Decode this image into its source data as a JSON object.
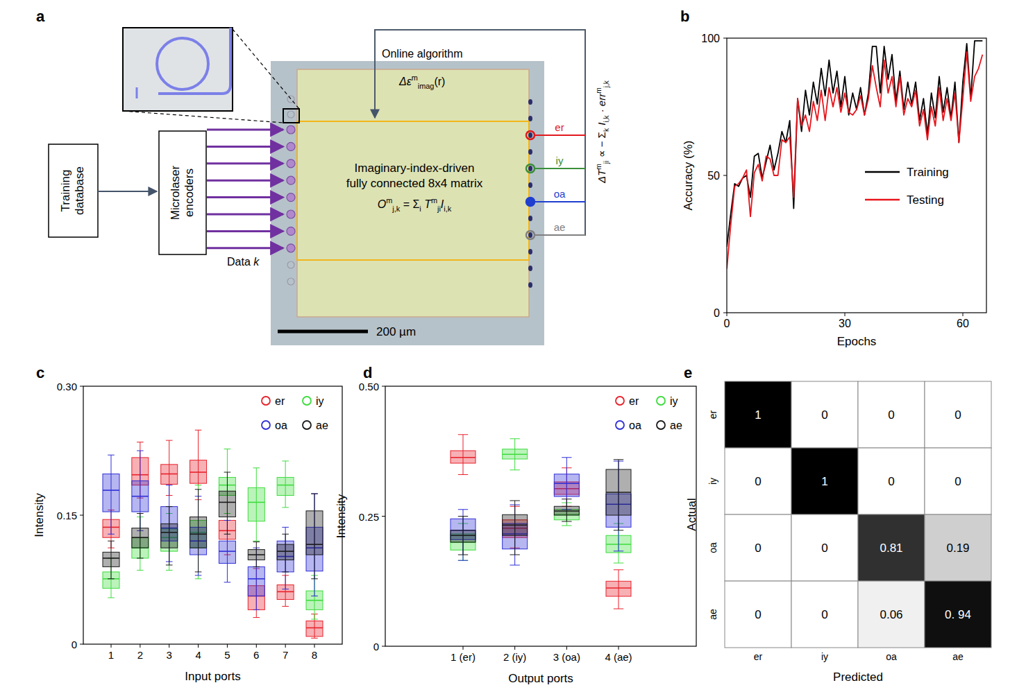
{
  "diagram": {
    "panel_label": "a",
    "training_database": [
      "Training",
      "database"
    ],
    "encoders": [
      "Microlaser",
      "encoders"
    ],
    "data_label": [
      {
        "t": "Data "
      },
      {
        "t": "k",
        "it": true
      }
    ],
    "online_algorithm": "Online algorithm",
    "permittivity": [
      {
        "t": "Δε",
        "it": true
      },
      {
        "t": "m",
        "sup": true
      },
      {
        "t": "imag",
        "sub": true
      },
      {
        "t": "(r)"
      }
    ],
    "matrix_title": [
      "Imaginary-index-driven",
      "fully connected 8x4 matrix"
    ],
    "matrix_formula": [
      {
        "t": "O",
        "it": true
      },
      {
        "t": "m",
        "sup": true
      },
      {
        "t": "j,k",
        "sub": true
      },
      {
        "t": " = Σ"
      },
      {
        "t": "i",
        "sub": true
      },
      {
        "t": " T",
        "it": true
      },
      {
        "t": "m",
        "sup": true
      },
      {
        "t": "ji",
        "sub": true
      },
      {
        "t": "I",
        "it": true
      },
      {
        "t": "i,k",
        "sub": true
      }
    ],
    "update_rule": [
      {
        "t": "ΔT",
        "it": true
      },
      {
        "t": "m",
        "sup": true
      },
      {
        "t": "ji",
        "sub": true
      },
      {
        "t": " ∝ − Σ"
      },
      {
        "t": "k",
        "sub": true
      },
      {
        "t": " I",
        "it": true
      },
      {
        "t": "i,k",
        "sub": true
      },
      {
        "t": " · err",
        "it": true
      },
      {
        "t": "m",
        "sup": true
      },
      {
        "t": "j,k",
        "sub": true
      }
    ],
    "outputs": [
      {
        "label": "er",
        "color": "#e0191e"
      },
      {
        "label": "iy",
        "color": "#3a8f3a"
      },
      {
        "label": "oa",
        "color": "#1f3fcf"
      },
      {
        "label": "ae",
        "color": "#7f7f7f"
      }
    ],
    "scale_bar": "200 µm"
  },
  "chart_data": [
    {
      "type": "line",
      "panel_label": "b",
      "x_label": "Epochs",
      "y_label": "Accuracy (%)",
      "x": [
        0,
        1,
        2,
        3,
        4,
        5,
        6,
        7,
        8,
        9,
        10,
        11,
        12,
        13,
        14,
        15,
        16,
        17,
        18,
        19,
        20,
        21,
        22,
        23,
        24,
        25,
        26,
        27,
        28,
        29,
        30,
        31,
        32,
        33,
        34,
        35,
        36,
        37,
        38,
        39,
        40,
        41,
        42,
        43,
        44,
        45,
        46,
        47,
        48,
        49,
        50,
        51,
        52,
        53,
        54,
        55,
        56,
        57,
        58,
        59,
        60,
        61,
        62,
        63,
        64,
        65
      ],
      "xlim": [
        0,
        66
      ],
      "xticks": [
        0,
        30,
        60
      ],
      "ylim": [
        0,
        100
      ],
      "yticks": [
        0,
        50,
        100
      ],
      "grid": false,
      "legend": "right",
      "series": [
        {
          "name": "Training",
          "color": "#000000",
          "values": [
            24,
            36,
            47,
            46,
            49,
            50,
            42,
            57,
            58,
            49,
            55,
            61,
            52,
            58,
            66,
            62,
            70,
            38,
            78,
            66,
            81,
            72,
            84,
            76,
            89,
            79,
            92,
            80,
            88,
            75,
            86,
            72,
            80,
            74,
            82,
            72,
            80,
            97,
            97,
            80,
            97,
            85,
            94,
            77,
            88,
            74,
            84,
            76,
            84,
            70,
            78,
            65,
            80,
            71,
            86,
            73,
            82,
            71,
            84,
            62,
            84,
            98,
            78,
            99,
            99,
            99
          ]
        },
        {
          "name": "Testing",
          "color": "#e8141b",
          "values": [
            16,
            32,
            46,
            47,
            49,
            52,
            35,
            51,
            54,
            48,
            57,
            56,
            50,
            50,
            63,
            62,
            64,
            42,
            78,
            68,
            72,
            66,
            77,
            70,
            81,
            70,
            82,
            75,
            82,
            73,
            80,
            73,
            72,
            74,
            79,
            72,
            78,
            90,
            82,
            75,
            92,
            80,
            86,
            75,
            86,
            72,
            78,
            75,
            81,
            68,
            74,
            63,
            75,
            68,
            82,
            70,
            78,
            70,
            80,
            62,
            78,
            95,
            77,
            86,
            89,
            94
          ]
        }
      ]
    },
    {
      "type": "box",
      "panel_label": "c",
      "x_label": "Input ports",
      "y_label": "Intensity",
      "categories": [
        "1",
        "2",
        "3",
        "4",
        "5",
        "6",
        "7",
        "8"
      ],
      "ylim": [
        0,
        0.3
      ],
      "yticks": [
        0,
        0.15,
        {
          "value": 0.3,
          "label": "0.30"
        }
      ],
      "legend": "upper right",
      "series": [
        {
          "name": "er",
          "color": "#e8202a",
          "whisker_low": [
            0.112,
            0.17,
            0.173,
            0.168,
            0.104,
            0.031,
            0.044,
            0.007
          ],
          "q1": [
            0.124,
            0.185,
            0.186,
            0.187,
            0.122,
            0.04,
            0.052,
            0.009
          ],
          "median": [
            0.136,
            0.197,
            0.198,
            0.2,
            0.132,
            0.056,
            0.061,
            0.019
          ],
          "q3": [
            0.145,
            0.217,
            0.209,
            0.214,
            0.144,
            0.068,
            0.069,
            0.027
          ],
          "whisker_high": [
            0.156,
            0.235,
            0.237,
            0.249,
            0.165,
            0.088,
            0.08,
            0.035
          ]
        },
        {
          "name": "iy",
          "color": "#3ddc3d",
          "whisker_low": [
            0.054,
            0.086,
            0.086,
            0.076,
            0.152,
            0.12,
            0.159,
            0.029
          ],
          "q1": [
            0.065,
            0.1,
            0.108,
            0.112,
            0.173,
            0.143,
            0.173,
            0.04
          ],
          "median": [
            0.076,
            0.112,
            0.124,
            0.13,
            0.185,
            0.165,
            0.185,
            0.051
          ],
          "q3": [
            0.084,
            0.124,
            0.134,
            0.144,
            0.194,
            0.182,
            0.194,
            0.062
          ],
          "whisker_high": [
            0.1,
            0.148,
            0.152,
            0.185,
            0.227,
            0.205,
            0.213,
            0.08
          ]
        },
        {
          "name": "oa",
          "color": "#2f2fd8",
          "whisker_low": [
            0.128,
            0.132,
            0.096,
            0.08,
            0.072,
            0.04,
            0.064,
            0.056
          ],
          "q1": [
            0.154,
            0.154,
            0.12,
            0.104,
            0.094,
            0.056,
            0.084,
            0.085
          ],
          "median": [
            0.179,
            0.172,
            0.135,
            0.12,
            0.108,
            0.076,
            0.102,
            0.112
          ],
          "q3": [
            0.198,
            0.19,
            0.16,
            0.136,
            0.12,
            0.09,
            0.12,
            0.136
          ],
          "whisker_high": [
            0.22,
            0.225,
            0.185,
            0.172,
            0.144,
            0.112,
            0.136,
            0.175
          ]
        },
        {
          "name": "ae",
          "color": "#1a1a1a",
          "whisker_low": [
            0.076,
            0.1,
            0.092,
            0.084,
            0.128,
            0.09,
            0.084,
            0.076
          ],
          "q1": [
            0.09,
            0.112,
            0.112,
            0.112,
            0.148,
            0.098,
            0.098,
            0.104
          ],
          "median": [
            0.1,
            0.124,
            0.13,
            0.128,
            0.165,
            0.104,
            0.108,
            0.116
          ],
          "q3": [
            0.107,
            0.135,
            0.14,
            0.148,
            0.178,
            0.11,
            0.116,
            0.155
          ],
          "whisker_high": [
            0.12,
            0.152,
            0.16,
            0.18,
            0.2,
            0.119,
            0.128,
            0.175
          ]
        }
      ]
    },
    {
      "type": "box",
      "panel_label": "d",
      "x_label": "Output ports",
      "y_label": "Intensity",
      "categories": [
        "1 (er)",
        "2 (iy)",
        "3 (oa)",
        "4 (ae)"
      ],
      "ylim": [
        0,
        0.5
      ],
      "yticks": [
        0,
        0.25,
        {
          "value": 0.5,
          "label": "0.50"
        }
      ],
      "legend": "upper right",
      "series": [
        {
          "name": "er",
          "color": "#e8202a",
          "whisker_low": [
            0.33,
            0.189,
            0.269,
            0.072
          ],
          "q1": [
            0.352,
            0.209,
            0.292,
            0.096
          ],
          "median": [
            0.363,
            0.227,
            0.303,
            0.112
          ],
          "q3": [
            0.376,
            0.243,
            0.316,
            0.125
          ],
          "whisker_high": [
            0.407,
            0.269,
            0.343,
            0.147
          ]
        },
        {
          "name": "iy",
          "color": "#3ddc3d",
          "whisker_low": [
            0.165,
            0.339,
            0.232,
            0.16
          ],
          "q1": [
            0.185,
            0.36,
            0.243,
            0.18
          ],
          "median": [
            0.2,
            0.369,
            0.253,
            0.196
          ],
          "q3": [
            0.216,
            0.379,
            0.263,
            0.213
          ],
          "whisker_high": [
            0.236,
            0.399,
            0.276,
            0.236
          ]
        },
        {
          "name": "oa",
          "color": "#2f2fd8",
          "whisker_low": [
            0.165,
            0.156,
            0.263,
            0.183
          ],
          "q1": [
            0.205,
            0.187,
            0.288,
            0.229
          ],
          "median": [
            0.223,
            0.216,
            0.313,
            0.273
          ],
          "q3": [
            0.245,
            0.236,
            0.331,
            0.293
          ],
          "whisker_high": [
            0.263,
            0.272,
            0.363,
            0.356
          ]
        },
        {
          "name": "ae",
          "color": "#1a1a1a",
          "whisker_low": [
            0.176,
            0.176,
            0.24,
            0.223
          ],
          "q1": [
            0.2,
            0.213,
            0.252,
            0.252
          ],
          "median": [
            0.213,
            0.233,
            0.26,
            0.296
          ],
          "q3": [
            0.223,
            0.253,
            0.269,
            0.34
          ],
          "whisker_high": [
            0.25,
            0.28,
            0.283,
            0.359
          ]
        }
      ]
    },
    {
      "type": "heatmap",
      "panel_label": "e",
      "x_label": "Predicted",
      "y_label": "Actual",
      "x_categories": [
        "er",
        "iy",
        "oa",
        "ae"
      ],
      "y_categories": [
        "er",
        "iy",
        "oa",
        "ae"
      ],
      "values": [
        [
          1,
          0,
          0,
          0
        ],
        [
          0,
          1,
          0,
          0
        ],
        [
          0,
          0,
          0.81,
          0.19
        ],
        [
          0,
          0,
          0.06,
          0.94
        ]
      ],
      "value_labels": [
        [
          "1",
          "0",
          "0",
          "0"
        ],
        [
          "0",
          "1",
          "0",
          "0"
        ],
        [
          "0",
          "0",
          "0.81",
          "0.19"
        ],
        [
          "0",
          "0",
          "0.06",
          "0. 94"
        ]
      ]
    }
  ]
}
